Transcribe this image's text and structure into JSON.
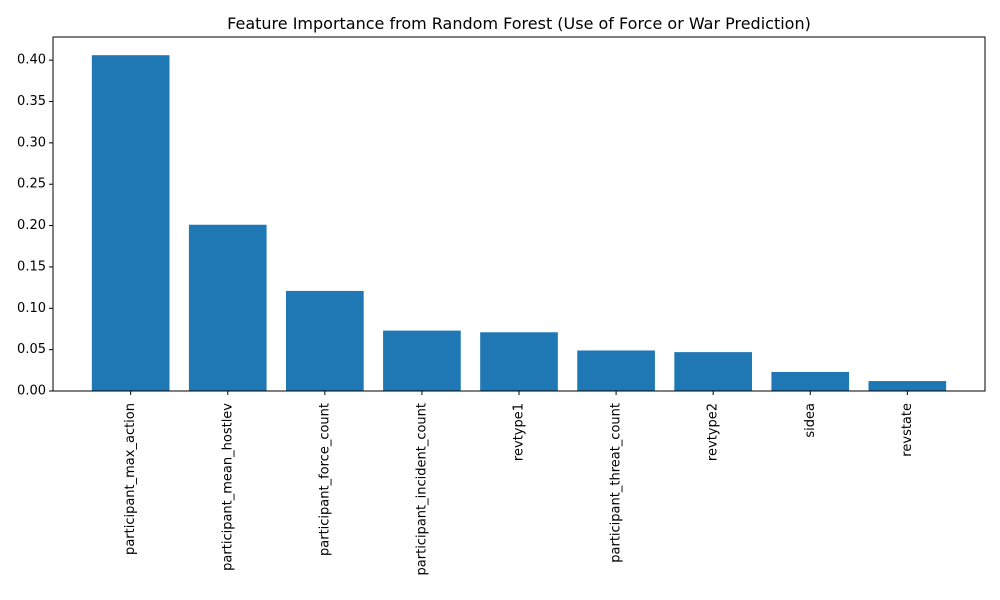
{
  "chart_data": {
    "type": "bar",
    "title": "Feature Importance from Random Forest (Use of Force or War Prediction)",
    "xlabel": "",
    "ylabel": "",
    "categories": [
      "participant_max_action",
      "participant_mean_hostlev",
      "participant_force_count",
      "participant_incident_count",
      "revtype1",
      "participant_threat_count",
      "revtype2",
      "sidea",
      "revstate"
    ],
    "values": [
      0.406,
      0.201,
      0.121,
      0.073,
      0.071,
      0.049,
      0.047,
      0.023,
      0.012
    ],
    "ylim": [
      0,
      0.428
    ],
    "yticks": [
      "0.00",
      "0.05",
      "0.10",
      "0.15",
      "0.20",
      "0.25",
      "0.30",
      "0.35",
      "0.40"
    ],
    "grid": false,
    "legend": "none",
    "colors": {
      "bar": "#1f77b4"
    }
  }
}
